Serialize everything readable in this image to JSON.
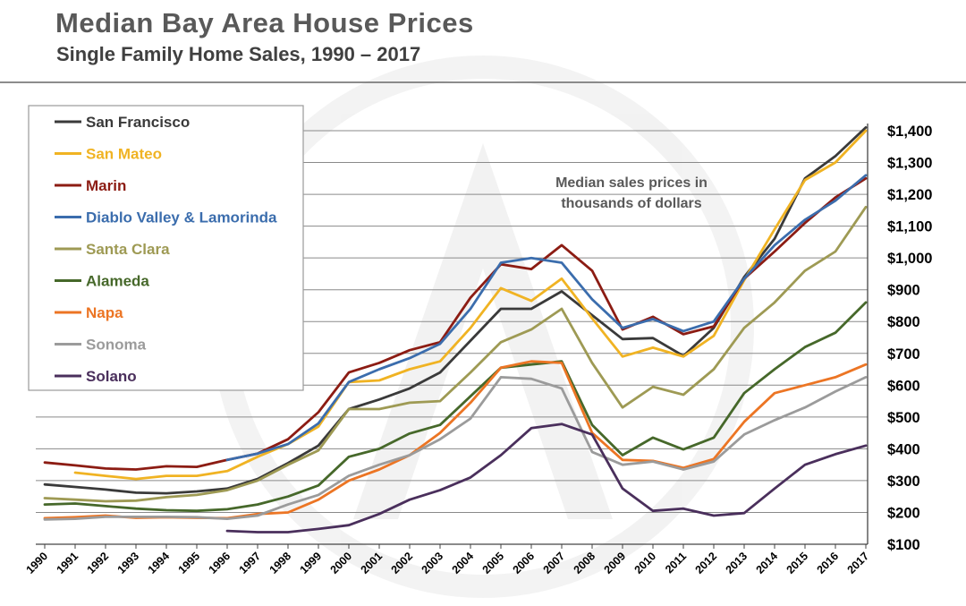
{
  "chart_data": {
    "type": "line",
    "title": "Median Bay Area House Prices",
    "subtitle": "Single Family Home Sales, 1990 – 2017",
    "annotation": [
      "Median sales prices in",
      "thousands of dollars"
    ],
    "xlabel": "",
    "ylabel": "",
    "ylim": [
      100,
      1400
    ],
    "yticks": [
      100,
      200,
      300,
      400,
      500,
      600,
      700,
      800,
      900,
      1000,
      1100,
      1200,
      1300,
      1400
    ],
    "ytick_labels": [
      "$100",
      "$200",
      "$300",
      "$400",
      "$500",
      "$600",
      "$700",
      "$800",
      "$900",
      "$1,000",
      "$1,100",
      "$1,200",
      "$1,300",
      "$1,400"
    ],
    "x": [
      "1990",
      "1991",
      "1992",
      "1993",
      "1994",
      "1995",
      "1996",
      "1997",
      "1998",
      "1999",
      "2000",
      "2001",
      "2002",
      "2003",
      "2004",
      "2005",
      "2006",
      "2007",
      "2008",
      "2009",
      "2010",
      "2011",
      "2012",
      "2013",
      "2014",
      "2015",
      "2016",
      "2017"
    ],
    "legend_position": "top-left",
    "series": [
      {
        "name": "San Francisco",
        "color": "#3a3a3a",
        "values": [
          288,
          280,
          272,
          262,
          260,
          266,
          275,
          305,
          355,
          410,
          525,
          555,
          590,
          640,
          740,
          840,
          840,
          895,
          820,
          745,
          748,
          692,
          780,
          940,
          1060,
          1250,
          1320,
          1410
        ]
      },
      {
        "name": "San Mateo",
        "color": "#f0b323",
        "values": [
          null,
          325,
          315,
          305,
          315,
          315,
          330,
          375,
          415,
          470,
          610,
          615,
          650,
          675,
          780,
          905,
          865,
          935,
          810,
          690,
          718,
          690,
          755,
          930,
          1090,
          1245,
          1300,
          1400
        ]
      },
      {
        "name": "Marin",
        "color": "#8c1c13",
        "values": [
          357,
          348,
          338,
          335,
          345,
          343,
          365,
          385,
          430,
          515,
          640,
          670,
          710,
          735,
          875,
          980,
          965,
          1040,
          960,
          775,
          815,
          760,
          785,
          935,
          1020,
          1110,
          1190,
          1250
        ]
      },
      {
        "name": "Diablo Valley & Lamorinda",
        "color": "#3b6dad",
        "values": [
          null,
          null,
          null,
          null,
          null,
          null,
          365,
          385,
          415,
          480,
          610,
          650,
          685,
          730,
          840,
          985,
          1000,
          985,
          870,
          780,
          808,
          770,
          800,
          935,
          1040,
          1120,
          1180,
          1260
        ]
      },
      {
        "name": "Santa Clara",
        "color": "#9e9a54",
        "values": [
          245,
          240,
          235,
          237,
          248,
          255,
          270,
          300,
          350,
          395,
          525,
          525,
          545,
          550,
          640,
          735,
          775,
          840,
          670,
          530,
          595,
          570,
          650,
          780,
          860,
          960,
          1020,
          1160
        ]
      },
      {
        "name": "Alameda",
        "color": "#46682a",
        "values": [
          225,
          228,
          220,
          212,
          207,
          205,
          210,
          225,
          250,
          285,
          375,
          400,
          448,
          475,
          565,
          655,
          665,
          675,
          475,
          380,
          435,
          398,
          435,
          575,
          650,
          720,
          765,
          860
        ]
      },
      {
        "name": "Napa",
        "color": "#ec7524",
        "values": [
          182,
          185,
          190,
          183,
          185,
          183,
          182,
          195,
          200,
          240,
          300,
          335,
          380,
          450,
          545,
          655,
          675,
          670,
          450,
          365,
          362,
          340,
          368,
          485,
          575,
          600,
          625,
          665
        ]
      },
      {
        "name": "Sonoma",
        "color": "#9b9b9b",
        "values": [
          178,
          180,
          186,
          186,
          186,
          185,
          180,
          190,
          225,
          255,
          315,
          350,
          380,
          430,
          495,
          625,
          620,
          590,
          390,
          350,
          360,
          335,
          360,
          445,
          490,
          530,
          580,
          625
        ]
      },
      {
        "name": "Solano",
        "color": "#4a2f5c",
        "values": [
          null,
          null,
          null,
          null,
          null,
          null,
          142,
          138,
          138,
          148,
          160,
          195,
          240,
          270,
          310,
          380,
          465,
          478,
          445,
          275,
          205,
          212,
          190,
          198,
          275,
          350,
          383,
          410
        ]
      }
    ]
  }
}
